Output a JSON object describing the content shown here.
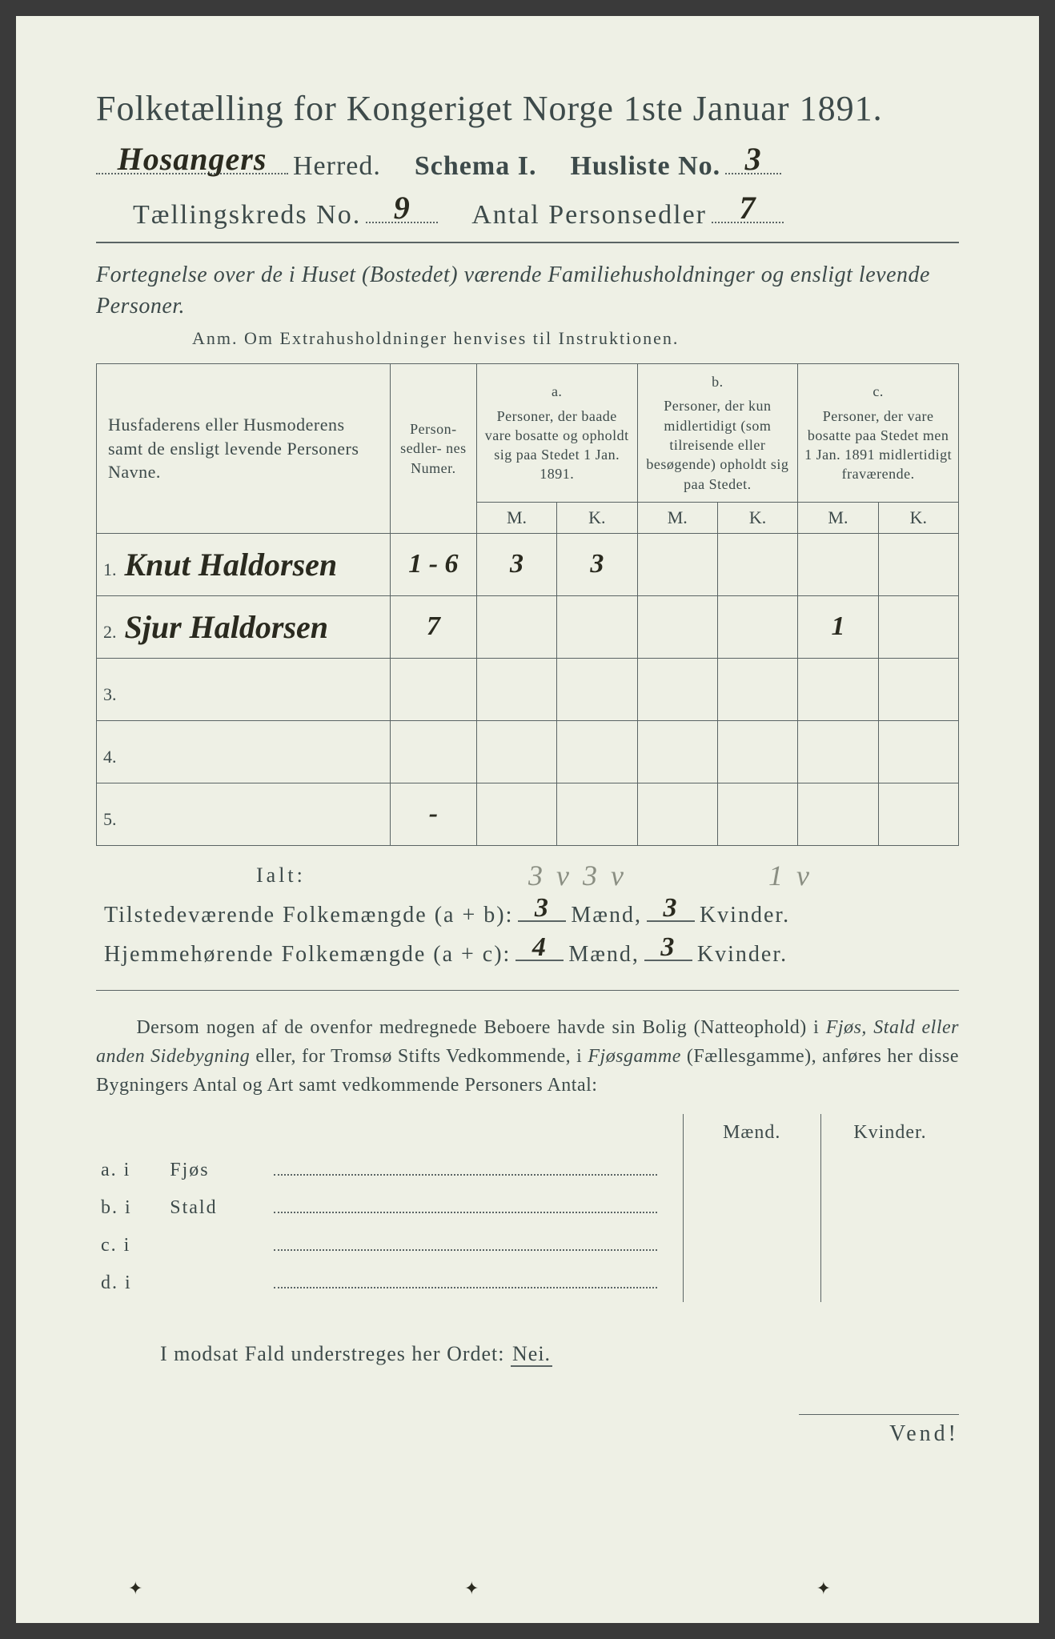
{
  "paper_bg": "#eef0e5",
  "ink": "#3d4a4a",
  "handwriting_color": "#2a2a1f",
  "pencil_color": "#8a8e82",
  "title": "Folketælling for Kongeriget Norge 1ste Januar 1891.",
  "header": {
    "herred_hw": "Hosangers",
    "herred_label": "Herred.",
    "schema_label": "Schema I.",
    "husliste_label": "Husliste No.",
    "husliste_no": "3",
    "kreds_label": "Tællingskreds No.",
    "kreds_no": "9",
    "antal_label": "Antal Personsedler",
    "antal_val": "7"
  },
  "subtitle": "Fortegnelse over de i Huset (Bostedet) værende Familiehusholdninger og ensligt levende Personer.",
  "anm": "Anm.  Om Extrahusholdninger henvises til Instruktionen.",
  "table": {
    "col_name": "Husfaderens eller Husmoderens samt de ensligt levende Personers Navne.",
    "col_numer": "Person-\nsedler-\nnes Numer.",
    "col_a_lbl": "a.",
    "col_a": "Personer, der baade vare bosatte og opholdt sig paa Stedet 1 Jan. 1891.",
    "col_b_lbl": "b.",
    "col_b": "Personer, der kun midlertidigt (som tilreisende eller besøgende) opholdt sig paa Stedet.",
    "col_c_lbl": "c.",
    "col_c": "Personer, der vare bosatte paa Stedet men 1 Jan. 1891 midlertidigt fraværende.",
    "M": "M.",
    "K": "K.",
    "rows": [
      {
        "n": "1.",
        "name": "Knut Haldorsen",
        "numer": "1 - 6",
        "aM": "3",
        "aK": "3",
        "bM": "",
        "bK": "",
        "cM": "",
        "cK": ""
      },
      {
        "n": "2.",
        "name": "Sjur Haldorsen",
        "numer": "7",
        "aM": "",
        "aK": "",
        "bM": "",
        "bK": "",
        "cM": "1",
        "cK": ""
      },
      {
        "n": "3.",
        "name": "",
        "numer": "",
        "aM": "",
        "aK": "",
        "bM": "",
        "bK": "",
        "cM": "",
        "cK": ""
      },
      {
        "n": "4.",
        "name": "",
        "numer": "",
        "aM": "",
        "aK": "",
        "bM": "",
        "bK": "",
        "cM": "",
        "cK": ""
      },
      {
        "n": "5.",
        "name": "",
        "numer": "-",
        "aM": "",
        "aK": "",
        "bM": "",
        "bK": "",
        "cM": "",
        "cK": ""
      }
    ]
  },
  "ialt": {
    "label": "Ialt:",
    "pencil_a": "3 v 3 v",
    "pencil_c": "1 v"
  },
  "sums": {
    "line1_label": "Tilstedeværende Folkemængde (a + b):",
    "line1_m": "3",
    "line1_k": "3",
    "line2_label": "Hjemmehørende Folkemængde (a + c):",
    "line2_m": "4",
    "line2_k": "3",
    "maend": "Mænd,",
    "kvinder": "Kvinder."
  },
  "para": "Dersom nogen af de ovenfor medregnede Beboere havde sin Bolig (Natteophold) i Fjøs, Stald eller anden Sidebygning eller, for Tromsø Stifts Vedkommende, i Fjøsgamme (Fællesgamme), anføres her disse Bygningers Antal og Art samt vedkommende Personers Antal:",
  "bygn": {
    "head_m": "Mænd.",
    "head_k": "Kvinder.",
    "rows": [
      {
        "a": "a.  i",
        "b": "Fjøs"
      },
      {
        "a": "b.  i",
        "b": "Stald"
      },
      {
        "a": "c.  i",
        "b": ""
      },
      {
        "a": "d.  i",
        "b": ""
      }
    ]
  },
  "modsat": "I modsat Fald understreges her Ordet:",
  "nei": "Nei.",
  "vend": "Vend!"
}
